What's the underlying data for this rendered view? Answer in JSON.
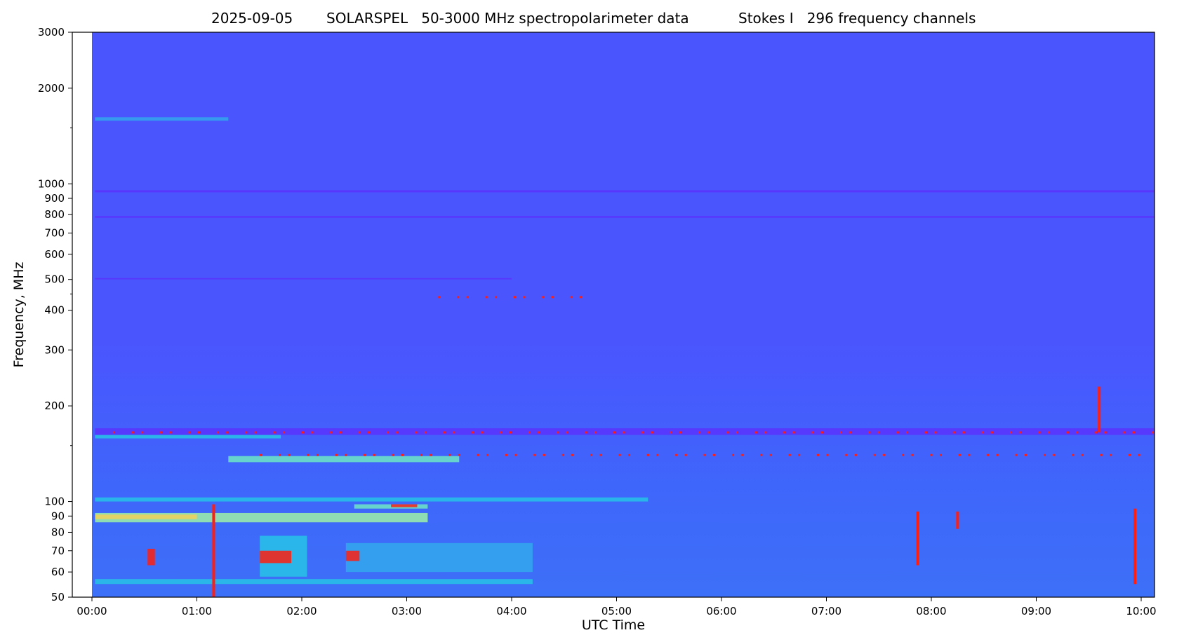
{
  "chart_data": {
    "type": "heatmap",
    "title_parts": [
      "2025-09-05",
      "SOLARSPEL   50-3000 MHz spectropolarimeter data",
      "Stokes I   296 frequency channels"
    ],
    "xlabel": "UTC Time",
    "ylabel": "Frequency, MHz",
    "y_scale": "log",
    "ylim": [
      50,
      3000
    ],
    "xlim": [
      "00:00",
      "10:11"
    ],
    "data_start": "00:01",
    "x_ticks": [
      {
        "label": "00:00",
        "hour": 0
      },
      {
        "label": "01:00",
        "hour": 1
      },
      {
        "label": "02:00",
        "hour": 2
      },
      {
        "label": "03:00",
        "hour": 3
      },
      {
        "label": "04:00",
        "hour": 4
      },
      {
        "label": "05:00",
        "hour": 5
      },
      {
        "label": "06:00",
        "hour": 6
      },
      {
        "label": "07:00",
        "hour": 7
      },
      {
        "label": "08:00",
        "hour": 8
      },
      {
        "label": "09:00",
        "hour": 9
      },
      {
        "label": "10:00",
        "hour": 10
      }
    ],
    "y_ticks_major": [
      {
        "label": "50",
        "mhz": 50
      },
      {
        "label": "60",
        "mhz": 60
      },
      {
        "label": "70",
        "mhz": 70
      },
      {
        "label": "80",
        "mhz": 80
      },
      {
        "label": "90",
        "mhz": 90
      },
      {
        "label": "100",
        "mhz": 100
      },
      {
        "label": "200",
        "mhz": 200
      },
      {
        "label": "300",
        "mhz": 300
      },
      {
        "label": "400",
        "mhz": 400
      },
      {
        "label": "500",
        "mhz": 500
      },
      {
        "label": "600",
        "mhz": 600
      },
      {
        "label": "700",
        "mhz": 700
      },
      {
        "label": "800",
        "mhz": 800
      },
      {
        "label": "900",
        "mhz": 900
      },
      {
        "label": "1000",
        "mhz": 1000
      },
      {
        "label": "2000",
        "mhz": 2000
      },
      {
        "label": "3000",
        "mhz": 3000
      }
    ],
    "y_ticks_minor": [
      150,
      450,
      1500
    ],
    "colormap": "rainbow",
    "colors": {
      "background": "#4a55fe",
      "low": "#5b33fd",
      "mid": "#27c3e6",
      "high_green": "#9ef2a5",
      "high_yellow": "#f2d25a",
      "peak": "#ff1e10"
    },
    "bands": [
      {
        "mhz": [
          1580,
          1620
        ],
        "t": [
          0.03,
          1.3
        ],
        "color": "#33a8ec"
      },
      {
        "mhz": [
          940,
          955
        ],
        "t": [
          0.03,
          10.2
        ],
        "color": "#5b33fd"
      },
      {
        "mhz": [
          782,
          792
        ],
        "t": [
          0.03,
          10.2
        ],
        "color": "#5b33fd"
      },
      {
        "mhz": [
          500,
          505
        ],
        "t": [
          0.03,
          4.0
        ],
        "color": "#5b33fd"
      },
      {
        "mhz": [
          162,
          170
        ],
        "t": [
          0.03,
          10.2
        ],
        "color": "#5b33fd"
      },
      {
        "mhz": [
          158,
          162
        ],
        "t": [
          0.03,
          1.8
        ],
        "color": "#27c3e6"
      },
      {
        "mhz": [
          133,
          139
        ],
        "t": [
          1.3,
          3.5
        ],
        "color": "#6ee6c4"
      },
      {
        "mhz": [
          100,
          103
        ],
        "t": [
          0.03,
          5.3
        ],
        "color": "#27c3e6"
      },
      {
        "mhz": [
          86,
          92
        ],
        "t": [
          0.03,
          3.2
        ],
        "color": "#9ef2a5"
      },
      {
        "mhz": [
          88,
          91
        ],
        "t": [
          0.03,
          1.0
        ],
        "color": "#f2d25a"
      },
      {
        "mhz": [
          95,
          98
        ],
        "t": [
          2.5,
          3.2
        ],
        "color": "#6ee6c4"
      },
      {
        "mhz": [
          96,
          98
        ],
        "t": [
          2.85,
          3.1
        ],
        "color": "#ff1e10"
      },
      {
        "mhz": [
          55,
          57
        ],
        "t": [
          0.03,
          4.2
        ],
        "color": "#27c3e6"
      },
      {
        "mhz": [
          58,
          78
        ],
        "t": [
          1.6,
          2.05
        ],
        "color": "#27c3e6"
      },
      {
        "mhz": [
          60,
          74
        ],
        "t": [
          2.42,
          4.2
        ],
        "color": "#33a8ec"
      },
      {
        "mhz": [
          64,
          70
        ],
        "t": [
          1.6,
          1.9
        ],
        "color": "#ff1e10"
      },
      {
        "mhz": [
          65,
          70
        ],
        "t": [
          2.42,
          2.55
        ],
        "color": "#ff1e10"
      },
      {
        "mhz": [
          63,
          71
        ],
        "t": [
          0.53,
          0.6
        ],
        "color": "#ff1e10"
      }
    ],
    "bursts": [
      {
        "t": 1.16,
        "mhz": [
          50,
          98
        ],
        "color": "#ff1e10"
      },
      {
        "t": 7.87,
        "mhz": [
          63,
          93
        ],
        "color": "#ff1e10"
      },
      {
        "t": 8.25,
        "mhz": [
          82,
          93
        ],
        "color": "#ff1e10"
      },
      {
        "t": 9.94,
        "mhz": [
          55,
          95
        ],
        "color": "#ff1e10"
      },
      {
        "t": 9.6,
        "mhz": [
          165,
          230
        ],
        "color": "#ff1e10"
      }
    ],
    "rfi_rows": [
      {
        "mhz": 165,
        "t": [
          0.2,
          10.2
        ],
        "color": "#ff1e10"
      },
      {
        "mhz": 140,
        "t": [
          1.6,
          10.1
        ],
        "color": "#ff1e10"
      },
      {
        "mhz": 440,
        "t": [
          3.3,
          4.8
        ],
        "color": "#ff1e10"
      }
    ]
  }
}
